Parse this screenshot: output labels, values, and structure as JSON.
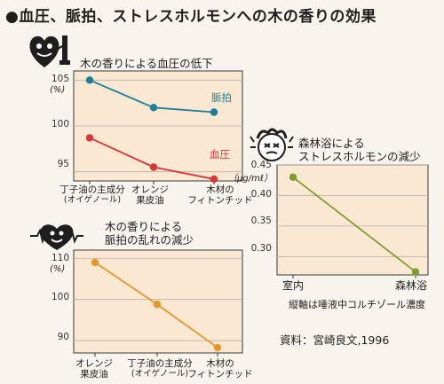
{
  "page": {
    "title": "●血圧、脈拍、ストレスホルモンへの木の香りの効果",
    "source": "資料：宮崎良文,1996"
  },
  "colors": {
    "background": "#f7f4ee",
    "panel_fill": "#fbe8d3",
    "pulse_line": "#1c7f97",
    "bp_line": "#d93636",
    "irregularity_line": "#e8962b",
    "cortisol_line": "#7d9d2e"
  },
  "icons": {
    "chart1": "heart-with-blood-pressure-gauge-icon",
    "chart2": "heart-pulse-face-icon",
    "chart3": "stressed-face-icon"
  },
  "chart_data": [
    {
      "id": "chart1",
      "type": "line",
      "title": "木の香りによる血圧の低下",
      "unit": "(%)",
      "categories": [
        {
          "main": "丁子油の主成分",
          "sub": "(オイゲノール)"
        },
        {
          "main": "オレンジ",
          "sub": "果皮油"
        },
        {
          "main": "木材の",
          "sub": "フィトンチッド"
        }
      ],
      "yticks": [
        105,
        100,
        95
      ],
      "ylim": [
        94,
        106
      ],
      "grid": "horizontal",
      "series": [
        {
          "name": "脈拍",
          "color": "#1c7f97",
          "values": [
            105.0,
            102.0,
            101.5
          ]
        },
        {
          "name": "血圧",
          "color": "#d93636",
          "values": [
            98.7,
            95.5,
            94.2
          ]
        }
      ]
    },
    {
      "id": "chart2",
      "type": "line",
      "title_lines": [
        "木の香りによる",
        "脈拍の乱れの減少"
      ],
      "unit": "(%)",
      "categories": [
        {
          "main": "オレンジ",
          "sub": "果皮油"
        },
        {
          "main": "丁子油の主成分",
          "sub": "(オイゲノール)"
        },
        {
          "main": "木材の",
          "sub": "フィトンチッド"
        }
      ],
      "yticks": [
        110,
        100,
        90
      ],
      "ylim": [
        87,
        112
      ],
      "grid": "horizontal",
      "series": [
        {
          "color": "#e8962b",
          "values": [
            109.0,
            98.8,
            88.3
          ]
        }
      ]
    },
    {
      "id": "chart3",
      "type": "line",
      "title_lines": [
        "森林浴による",
        "ストレスホルモンの減少"
      ],
      "unit": "（μg/mℓ）",
      "categories": [
        {
          "main": "室内"
        },
        {
          "main": "森林浴"
        }
      ],
      "yticks": [
        0.45,
        0.4,
        0.35,
        0.3
      ],
      "ylim": [
        0.27,
        0.45
      ],
      "grid": "horizontal",
      "xlabel": "縦軸は唾液中コルチゾール濃度",
      "series": [
        {
          "color": "#7d9d2e",
          "values": [
            0.43,
            0.275
          ]
        }
      ]
    }
  ]
}
